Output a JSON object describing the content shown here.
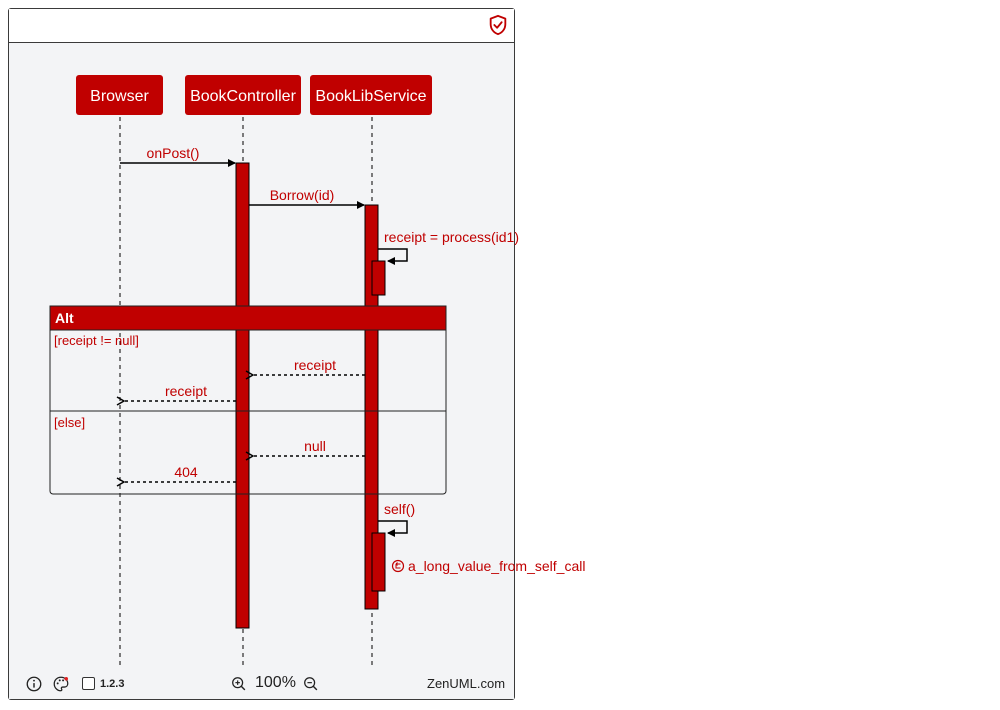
{
  "participants": [
    {
      "name": "Browser"
    },
    {
      "name": "BookController"
    },
    {
      "name": "BookLibService"
    }
  ],
  "messages": [
    {
      "label": "onPost()",
      "from": "Browser",
      "to": "BookController",
      "type": "sync"
    },
    {
      "label": "Borrow(id)",
      "from": "BookController",
      "to": "BookLibService",
      "type": "sync"
    },
    {
      "label": "receipt = process(id1)",
      "from": "BookLibService",
      "to": "BookLibService",
      "type": "self"
    },
    {
      "label": "receipt",
      "from": "BookLibService",
      "to": "BookController",
      "type": "return"
    },
    {
      "label": "receipt",
      "from": "BookController",
      "to": "Browser",
      "type": "return"
    },
    {
      "label": "null",
      "from": "BookLibService",
      "to": "BookController",
      "type": "return"
    },
    {
      "label": "404",
      "from": "BookController",
      "to": "Browser",
      "type": "return"
    },
    {
      "label": "self()",
      "from": "BookLibService",
      "to": "BookLibService",
      "type": "self"
    },
    {
      "label": "a_long_value_from_self_call",
      "from": "BookLibService",
      "to": "BookLibService",
      "type": "self-return"
    }
  ],
  "fragment": {
    "title": "Alt",
    "conditions": [
      "[receipt != null]",
      "[else]"
    ]
  },
  "footer": {
    "zoom": "100%",
    "numbering": "1.2.3",
    "brand": "ZenUML.com"
  },
  "colors": {
    "accent": "#c00000",
    "canvas": "#f3f4f6"
  },
  "icons": [
    "shield-check-icon",
    "info-icon",
    "palette-icon",
    "zoom-in-icon",
    "zoom-out-icon"
  ]
}
